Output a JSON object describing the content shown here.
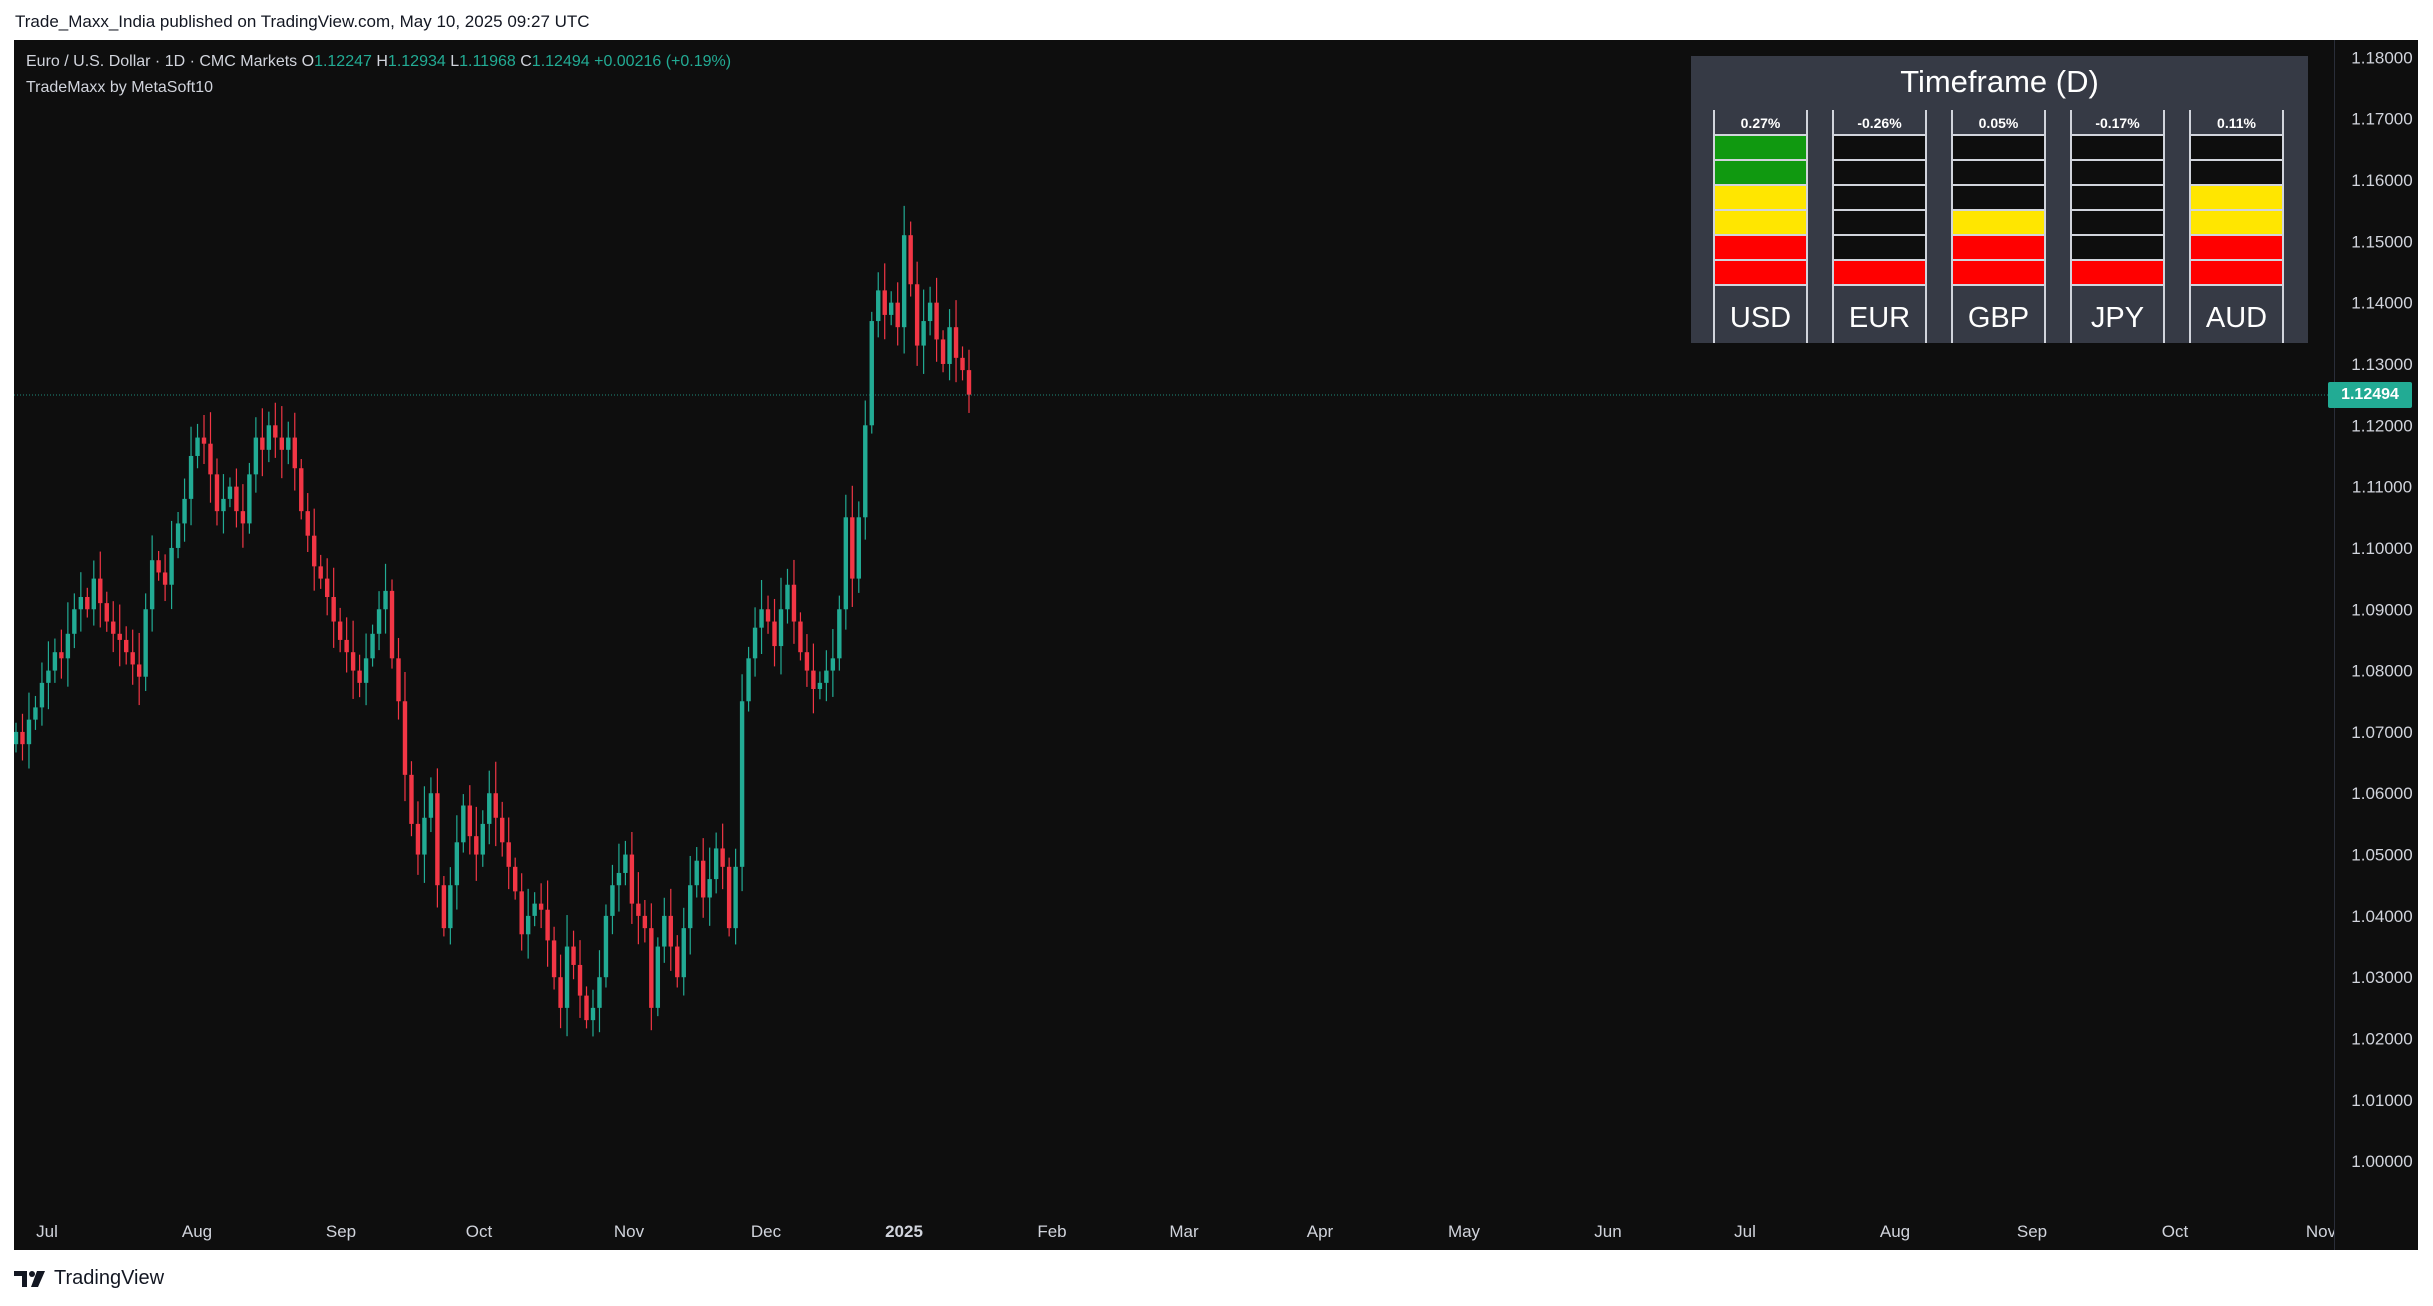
{
  "header": {
    "published": "Trade_Maxx_India published on TradingView.com, May 10, 2025 09:27 UTC"
  },
  "legend": {
    "symbol": "Euro / U.S. Dollar · 1D · CMC Markets",
    "o_label": "O",
    "o_value": "1.12247",
    "h_label": "H",
    "h_value": "1.12934",
    "l_label": "L",
    "l_value": "1.11968",
    "c_label": "C",
    "c_value": "1.12494",
    "change": "+0.00216 (+0.19%)",
    "indicator": "TradeMaxx by MetaSoft10"
  },
  "price_badge": "1.12494",
  "footer": {
    "brand": "TradingView"
  },
  "colors": {
    "up": "#22ab94",
    "down": "#f23645",
    "background": "#0e0e0e",
    "green": "#109910",
    "yellow": "#ffe600",
    "red": "#ff0000",
    "empty": "#0e0e0e"
  },
  "panel": {
    "title": "Timeframe (D)",
    "columns": [
      {
        "currency": "USD",
        "pct": "0.27%",
        "cells": [
          "green",
          "green",
          "yellow",
          "yellow",
          "red",
          "red"
        ]
      },
      {
        "currency": "EUR",
        "pct": "-0.26%",
        "cells": [
          "empty",
          "empty",
          "empty",
          "empty",
          "empty",
          "red"
        ]
      },
      {
        "currency": "GBP",
        "pct": "0.05%",
        "cells": [
          "empty",
          "empty",
          "empty",
          "yellow",
          "red",
          "red"
        ]
      },
      {
        "currency": "JPY",
        "pct": "-0.17%",
        "cells": [
          "empty",
          "empty",
          "empty",
          "empty",
          "empty",
          "red"
        ]
      },
      {
        "currency": "AUD",
        "pct": "0.11%",
        "cells": [
          "empty",
          "empty",
          "yellow",
          "yellow",
          "red",
          "red"
        ]
      }
    ]
  },
  "chart_data": {
    "type": "candlestick",
    "y_ticks": [
      "1.18000",
      "1.17000",
      "1.16000",
      "1.15000",
      "1.14000",
      "1.13000",
      "1.12000",
      "1.11000",
      "1.10000",
      "1.09000",
      "1.08000",
      "1.07000",
      "1.06000",
      "1.05000",
      "1.04000",
      "1.03000",
      "1.02000",
      "1.01000",
      "1.00000"
    ],
    "ylim": [
      0.9953,
      1.1812
    ],
    "x_ticks": [
      "Jul",
      "Aug",
      "Sep",
      "Oct",
      "Nov",
      "Dec",
      "2025",
      "Feb",
      "Mar",
      "Apr",
      "May",
      "Jun",
      "Jul",
      "Aug",
      "Sep",
      "Oct",
      "Nov"
    ],
    "x_tick_bold": [
      false,
      false,
      false,
      false,
      false,
      false,
      true,
      false,
      false,
      false,
      false,
      false,
      false,
      false,
      false,
      false,
      false
    ],
    "last_price": 1.12494,
    "closes": [
      1.07,
      1.068,
      1.072,
      1.074,
      1.078,
      1.08,
      1.083,
      1.082,
      1.086,
      1.09,
      1.092,
      1.09,
      1.095,
      1.091,
      1.088,
      1.086,
      1.085,
      1.083,
      1.081,
      1.079,
      1.09,
      1.098,
      1.096,
      1.094,
      1.1,
      1.104,
      1.108,
      1.115,
      1.118,
      1.117,
      1.112,
      1.106,
      1.108,
      1.11,
      1.106,
      1.104,
      1.112,
      1.118,
      1.116,
      1.12,
      1.118,
      1.116,
      1.118,
      1.113,
      1.106,
      1.102,
      1.097,
      1.095,
      1.092,
      1.088,
      1.085,
      1.083,
      1.08,
      1.078,
      1.082,
      1.086,
      1.09,
      1.093,
      1.082,
      1.075,
      1.063,
      1.055,
      1.05,
      1.056,
      1.06,
      1.045,
      1.038,
      1.045,
      1.052,
      1.058,
      1.053,
      1.05,
      1.055,
      1.06,
      1.056,
      1.052,
      1.048,
      1.044,
      1.037,
      1.04,
      1.042,
      1.041,
      1.036,
      1.03,
      1.025,
      1.035,
      1.032,
      1.027,
      1.023,
      1.025,
      1.03,
      1.04,
      1.045,
      1.047,
      1.05,
      1.042,
      1.04,
      1.038,
      1.025,
      1.035,
      1.04,
      1.035,
      1.03,
      1.038,
      1.045,
      1.049,
      1.043,
      1.046,
      1.051,
      1.048,
      1.038,
      1.048,
      1.075,
      1.082,
      1.087,
      1.09,
      1.088,
      1.084,
      1.09,
      1.094,
      1.088,
      1.083,
      1.08,
      1.077,
      1.078,
      1.08,
      1.082,
      1.09,
      1.105,
      1.095,
      1.105,
      1.12,
      1.137,
      1.142,
      1.138,
      1.14,
      1.136,
      1.151,
      1.143,
      1.133,
      1.137,
      1.14,
      1.134,
      1.13,
      1.136,
      1.131,
      1.129,
      1.125
    ]
  }
}
